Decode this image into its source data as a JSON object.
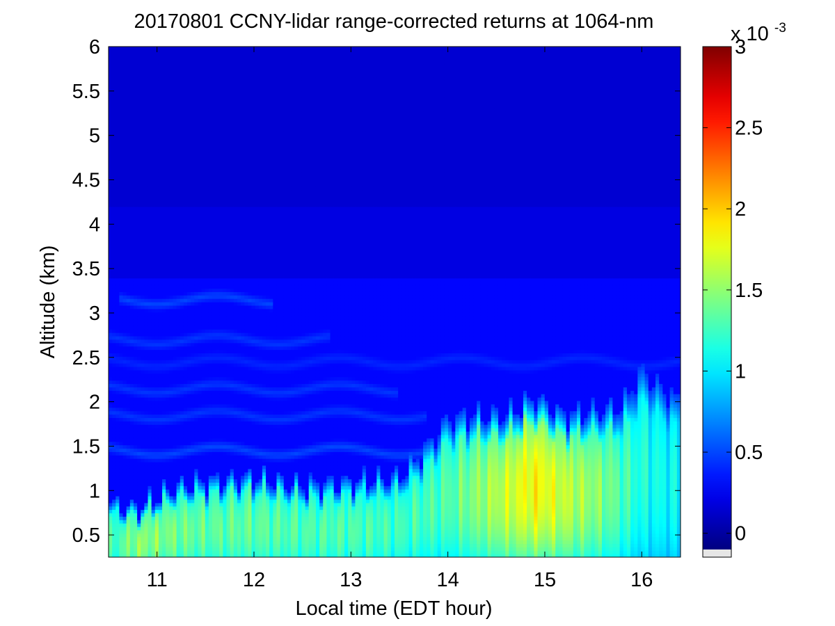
{
  "chart_data": {
    "type": "heatmap",
    "title": "20170801 CCNY-lidar range-corrected returns at 1064-nm",
    "xlabel": "Local time (EDT hour)",
    "ylabel": "Altitude (km)",
    "xlim": [
      10.5,
      16.4
    ],
    "ylim": [
      0.25,
      6.0
    ],
    "x_ticks": [
      11,
      12,
      13,
      14,
      15,
      16
    ],
    "x_tick_labels": [
      "11",
      "12",
      "13",
      "14",
      "15",
      "16"
    ],
    "y_ticks": [
      0.5,
      1,
      1.5,
      2,
      2.5,
      3,
      3.5,
      4,
      4.5,
      5,
      5.5,
      6
    ],
    "y_tick_labels": [
      "0.5",
      "1",
      "1.5",
      "2",
      "2.5",
      "3",
      "3.5",
      "4",
      "4.5",
      "5",
      "5.5",
      "6"
    ],
    "colormap": "jet",
    "colorbar": {
      "range": [
        -0.0001,
        0.003
      ],
      "ticks": [
        0,
        0.0005,
        0.001,
        0.0015,
        0.002,
        0.0025,
        0.003
      ],
      "tick_labels": [
        "0",
        "0.5",
        "1",
        "1.5",
        "2",
        "2.5",
        "3"
      ],
      "multiplier_base": "x 10",
      "multiplier_exponent": "-3",
      "nan_color": "#e6e6e6"
    },
    "boundary_layer_top_km": [
      [
        10.5,
        0.85
      ],
      [
        10.8,
        0.8
      ],
      [
        11.2,
        1.05
      ],
      [
        11.5,
        1.1
      ],
      [
        12.0,
        1.15
      ],
      [
        12.5,
        1.05
      ],
      [
        13.0,
        1.1
      ],
      [
        13.5,
        1.15
      ],
      [
        13.8,
        1.5
      ],
      [
        14.0,
        1.8
      ],
      [
        14.3,
        1.85
      ],
      [
        14.6,
        1.85
      ],
      [
        14.9,
        2.05
      ],
      [
        15.2,
        1.85
      ],
      [
        15.5,
        1.9
      ],
      [
        15.8,
        1.95
      ],
      [
        16.0,
        2.35
      ],
      [
        16.2,
        2.15
      ],
      [
        16.4,
        2.0
      ]
    ],
    "boundary_layer_peak_1e3": [
      [
        10.5,
        1.2
      ],
      [
        10.8,
        1.5
      ],
      [
        11.5,
        1.35
      ],
      [
        12.0,
        1.35
      ],
      [
        12.5,
        1.3
      ],
      [
        13.0,
        1.3
      ],
      [
        13.5,
        1.25
      ],
      [
        14.0,
        1.3
      ],
      [
        14.5,
        1.6
      ],
      [
        14.9,
        1.85
      ],
      [
        15.3,
        1.6
      ],
      [
        15.6,
        1.45
      ],
      [
        16.0,
        1.15
      ],
      [
        16.4,
        1.05
      ]
    ],
    "aerosol_layers": [
      {
        "alt_km": 3.15,
        "t_range": [
          10.6,
          12.2
        ],
        "value_1e3": 0.5
      },
      {
        "alt_km": 2.7,
        "t_range": [
          10.5,
          12.8
        ],
        "value_1e3": 0.45
      },
      {
        "alt_km": 2.45,
        "t_range": [
          10.5,
          16.4
        ],
        "value_1e3": 0.4
      },
      {
        "alt_km": 2.15,
        "t_range": [
          10.5,
          13.5
        ],
        "value_1e3": 0.45
      },
      {
        "alt_km": 1.85,
        "t_range": [
          10.5,
          13.8
        ],
        "value_1e3": 0.45
      },
      {
        "alt_km": 1.45,
        "t_range": [
          10.5,
          13.8
        ],
        "value_1e3": 0.5
      }
    ],
    "free_troposphere_1e3": 0.2,
    "upper_troposphere_1e3": 0.15
  }
}
